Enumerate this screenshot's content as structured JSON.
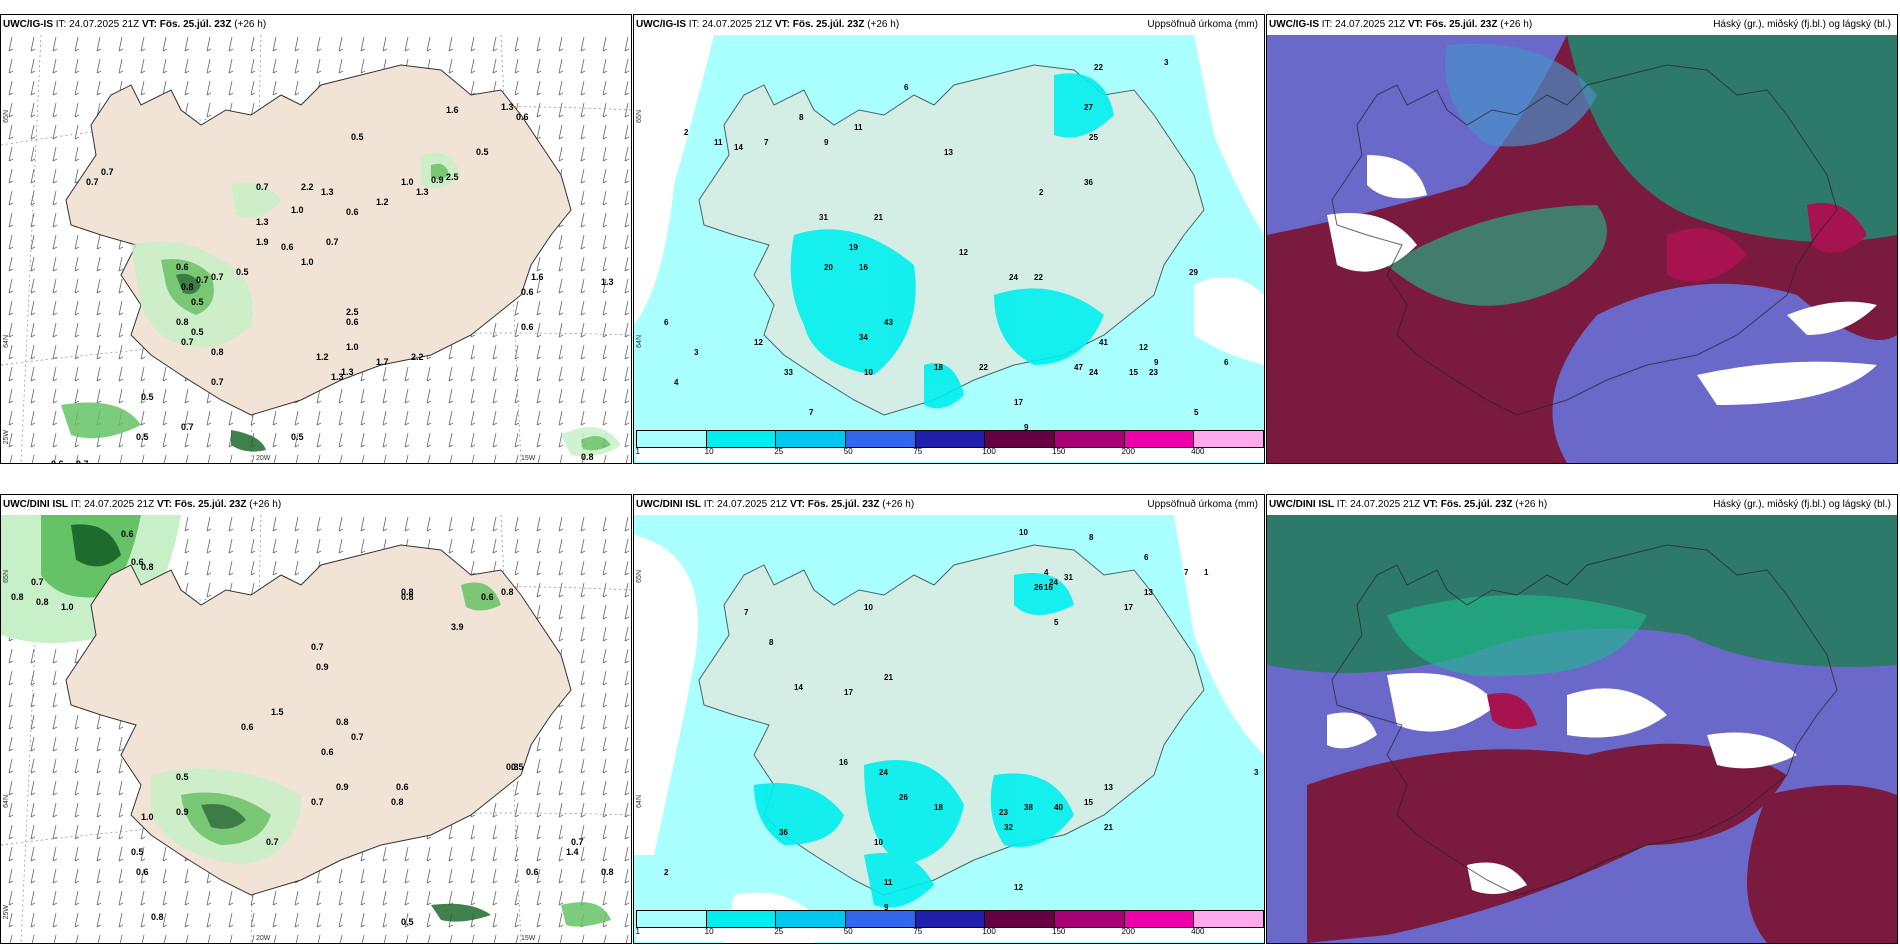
{
  "panels": {
    "p1": {
      "model": "UWC/IG-IS",
      "it": " IT: 24.07.2025 21Z ",
      "vt_label": "VT:",
      "vt_value": " Fös. 25.júl. 23Z ",
      "lead": "(+26 h)",
      "right": "",
      "lat_label": "65N",
      "lat_label2": "64N",
      "lon_label1": "25W",
      "lon_label2": "20W",
      "lon_label3": "15W"
    },
    "p2": {
      "model": "UWC/IG-IS",
      "it": " IT: 24.07.2025 21Z ",
      "vt_label": "VT:",
      "vt_value": " Fös. 25.júl. 23Z ",
      "lead": "(+26 h)",
      "right": "Uppsöfnuð úrkoma (mm)",
      "lat_label": "65N",
      "lat_label2": "64N"
    },
    "p3": {
      "model": "UWC/IG-IS",
      "it": " IT: 24.07.2025 21Z ",
      "vt_label": "VT:",
      "vt_value": " Fös. 25.júl. 23Z ",
      "lead": "(+26 h)",
      "right": "Háský (gr.), miðský (fj.bl.) og lágský (bl.)"
    },
    "p4": {
      "model": "UWC/DINI ISL",
      "it": " IT: 24.07.2025 21Z ",
      "vt_label": "VT:",
      "vt_value": " Fös. 25.júl. 23Z ",
      "lead": "(+26 h)",
      "right": "",
      "lat_label": "65N",
      "lat_label2": "64N",
      "lon_label1": "25W",
      "lon_label2": "20W",
      "lon_label3": "15W"
    },
    "p5": {
      "model": "UWC/DINI ISL",
      "it": " IT: 24.07.2025 21Z ",
      "vt_label": "VT:",
      "vt_value": " Fös. 25.júl. 23Z ",
      "lead": "(+26 h)",
      "right": "Uppsöfnuð úrkoma (mm)",
      "lat_label": "65N",
      "lat_label2": "64N"
    },
    "p6": {
      "model": "UWC/DINI ISL",
      "it": " IT: 24.07.2025 21Z ",
      "vt_label": "VT:",
      "vt_value": " Fös. 25.júl. 23Z ",
      "lead": "(+26 h)",
      "right": "Háský (gr.), miðský (fj.bl.) og lágský (bl.)"
    }
  },
  "legend": {
    "ticks": [
      "1",
      "10",
      "25",
      "50",
      "75",
      "100",
      "150",
      "200",
      "400"
    ],
    "colors": [
      "#aaffff",
      "#00eeee",
      "#00c8ee",
      "#3366ee",
      "#2020aa",
      "#660044",
      "#aa0077",
      "#ee00aa",
      "#ffaaee"
    ]
  },
  "colors": {
    "land": "#f1e4d6",
    "precip_light": "#c8f0c8",
    "precip_mid": "#66c266",
    "precip_dark": "#1e6b2e",
    "accum_base": "#aaffff",
    "accum_mid": "#00eeee",
    "cloud_high": "#2e7a6a",
    "cloud_mid": "#6a68c8",
    "cloud_low": "#7a1a3e"
  },
  "labels": {
    "p1": [
      "1.6",
      "1.3",
      "0.6",
      "0.5",
      "0.5",
      "0.7",
      "0.7",
      "0.7",
      "2.2",
      "1.3",
      "1.0",
      "0.6",
      "1.2",
      "1.0",
      "1.3",
      "0.9",
      "2.5",
      "1.3",
      "0.7",
      "1.9",
      "0.6",
      "0.6",
      "1.0",
      "0.5",
      "0.8",
      "0.7",
      "0.7",
      "0.5",
      "0.8",
      "0.5",
      "0.7",
      "0.8",
      "2.5",
      "0.6",
      "1.2",
      "1.0",
      "1.7",
      "2.2",
      "1.3",
      "0.7",
      "0.5",
      "0.6",
      "0.5",
      "0.5",
      "0.7",
      "0.5",
      "0.6",
      "0.7",
      "0.8",
      "1.6",
      "1.3",
      "0.6",
      "1.3"
    ],
    "p2": [
      "22",
      "3",
      "6",
      "11",
      "7",
      "2",
      "11",
      "8",
      "27",
      "9",
      "25",
      "2",
      "13",
      "14",
      "21",
      "24",
      "16",
      "12",
      "20",
      "22",
      "36",
      "41",
      "19",
      "34",
      "43",
      "29",
      "31",
      "24",
      "22",
      "18",
      "12",
      "7",
      "33",
      "10",
      "5",
      "4",
      "3",
      "6",
      "9",
      "15",
      "47",
      "12",
      "23",
      "17",
      "9",
      "5",
      "6"
    ],
    "p4": [
      "0.6",
      "0.8",
      "0.7",
      "0.8",
      "0.6",
      "0.8",
      "0.8",
      "1.0",
      "0.6",
      "0.8",
      "0.8",
      "3.9",
      "0.7",
      "0.9",
      "1.5",
      "0.6",
      "0.8",
      "0.6",
      "0.7",
      "0.9",
      "0.8",
      "0.6",
      "0.5",
      "1.0",
      "0.9",
      "0.5",
      "0.7",
      "0.6",
      "0.5",
      "0.8",
      "0.7",
      "0.5",
      "0.8",
      "0.6",
      "0.7",
      "1.4",
      "0.8"
    ],
    "p5": [
      "10",
      "8",
      "6",
      "10",
      "7",
      "16",
      "26",
      "24",
      "31",
      "13",
      "17",
      "7",
      "5",
      "8",
      "17",
      "21",
      "14",
      "24",
      "16",
      "36",
      "26",
      "23",
      "38",
      "40",
      "32",
      "15",
      "21",
      "10",
      "11",
      "9",
      "12",
      "13",
      "4",
      "3",
      "2",
      "1",
      "18"
    ]
  }
}
